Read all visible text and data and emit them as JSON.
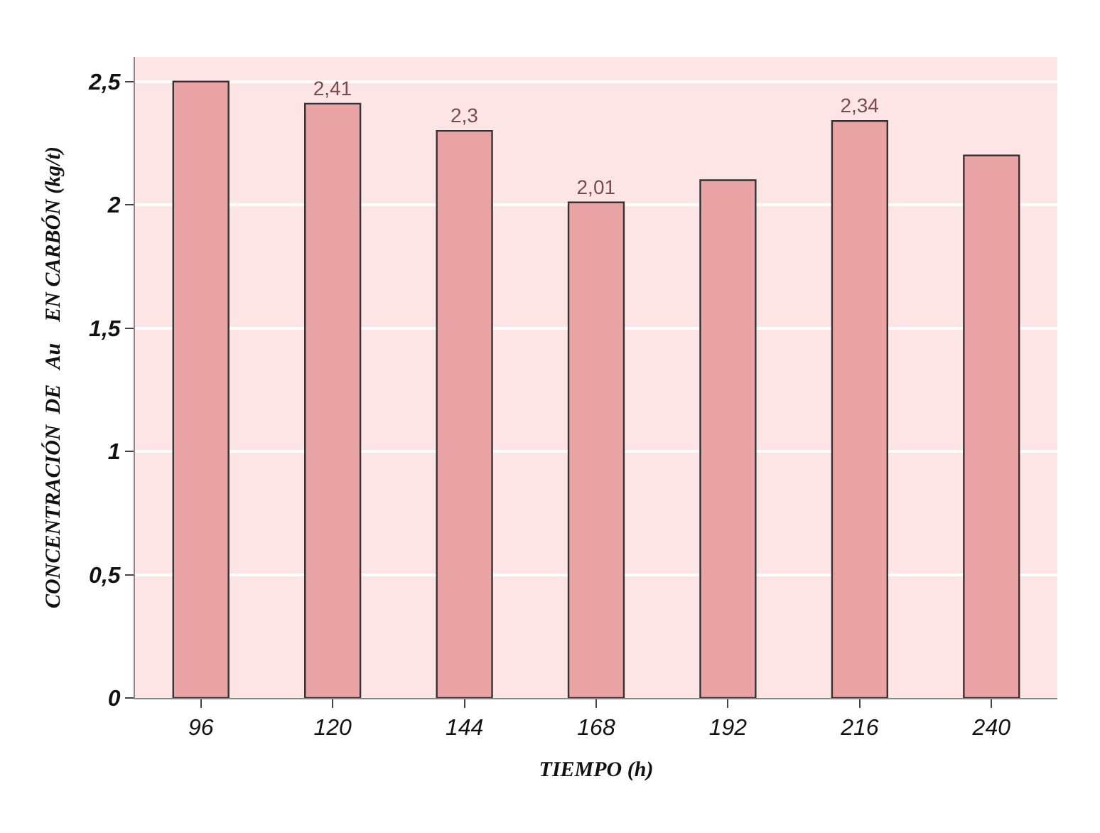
{
  "chart_data": {
    "type": "bar",
    "xlabel": "TIEMPO (h)",
    "ylabel": "CONCENTRACIÓN  DE   Au    EN CARBÓN (kg/t)",
    "categories": [
      "96",
      "120",
      "144",
      "168",
      "192",
      "216",
      "240"
    ],
    "values": [
      2.5,
      2.41,
      2.3,
      2.01,
      2.1,
      2.34,
      2.2
    ],
    "value_labels": [
      null,
      "2,41",
      "2,3",
      "2,01",
      null,
      "2,34",
      null
    ],
    "color": "#eba4a6",
    "ylim": [
      0,
      2.6
    ],
    "yticks": [
      0,
      {
        "value": 0.5,
        "label": "0,5"
      },
      1,
      {
        "value": 1.5,
        "label": "1,5"
      },
      2,
      {
        "value": 2.5,
        "label": "2,5"
      }
    ],
    "grid": "y",
    "legend": false
  }
}
